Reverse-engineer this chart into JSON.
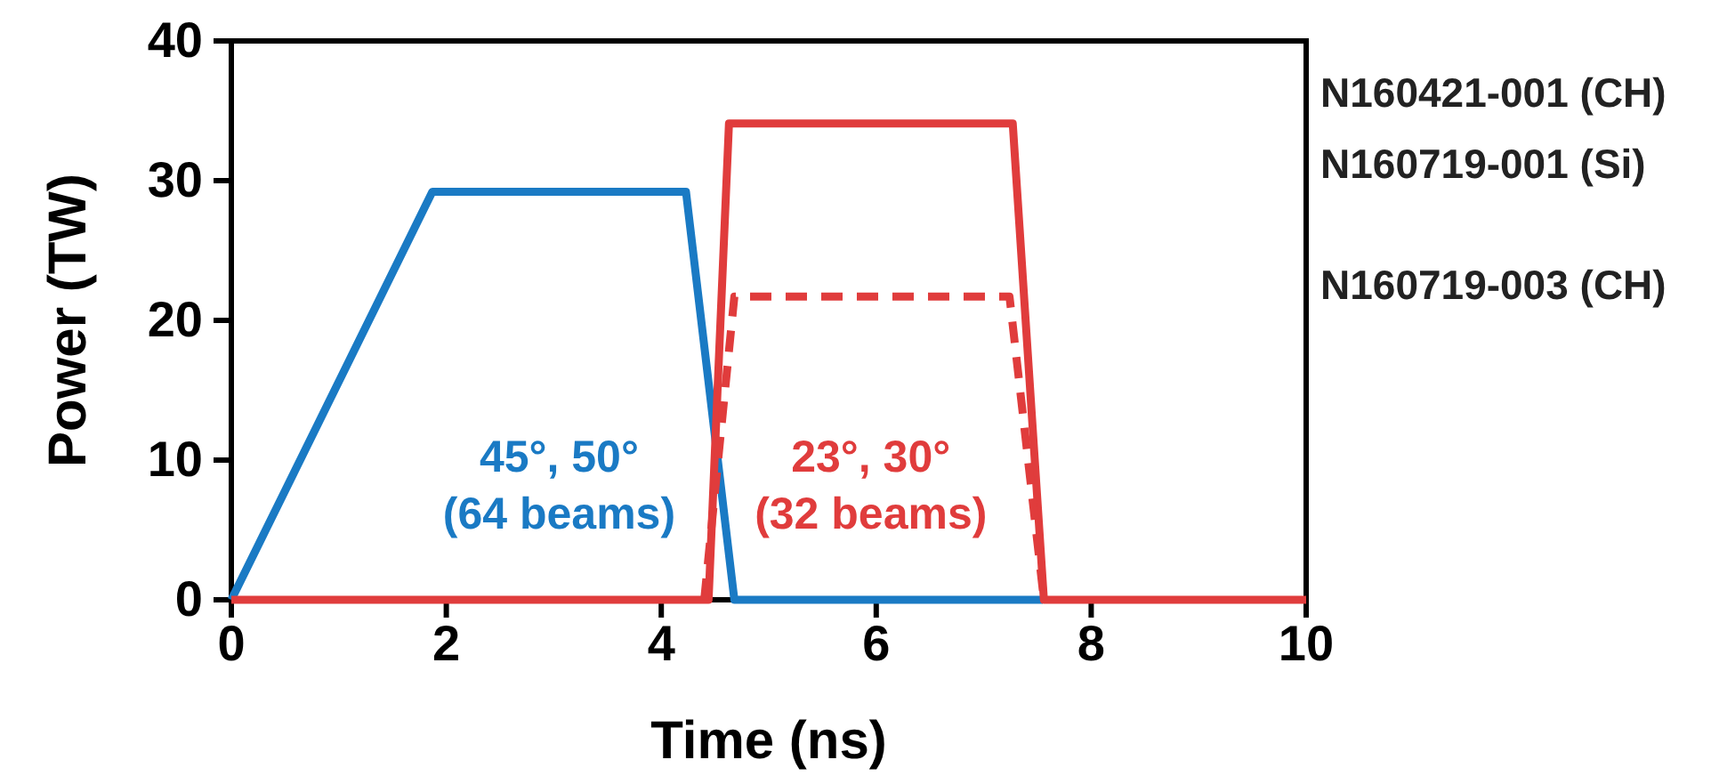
{
  "chart_data": {
    "type": "line",
    "xlabel": "Time (ns)",
    "ylabel": "Power (TW)",
    "xlim": [
      0,
      10
    ],
    "ylim": [
      0,
      40
    ],
    "xticks": [
      0,
      2,
      4,
      6,
      8,
      10
    ],
    "yticks": [
      0,
      10,
      20,
      30,
      40
    ],
    "grid": false,
    "line_style": "solid",
    "marker": "none",
    "series": [
      {
        "name": "45°, 50° (64 beams)",
        "color": "#1a7ac4",
        "x": [
          0,
          1.87,
          4.23,
          4.68,
          7.55
        ],
        "values": [
          0,
          29.2,
          29.2,
          0,
          0
        ]
      },
      {
        "name": "23°, 30° (32 beams)",
        "color": "#e03c3c",
        "x": [
          0,
          4.44,
          4.63,
          7.27,
          7.56,
          10
        ],
        "values": [
          0,
          0,
          34.1,
          34.1,
          0,
          0
        ]
      },
      {
        "color": "#e03c3c",
        "line_style": "dashed",
        "x": [
          4.4,
          4.68,
          7.24,
          7.56
        ],
        "values": [
          0,
          21.7,
          21.7,
          0
        ]
      }
    ],
    "annotations": [
      "N160421-001 (CH)",
      "N160719-001 (Si)",
      "N160719-003 (CH)"
    ]
  }
}
